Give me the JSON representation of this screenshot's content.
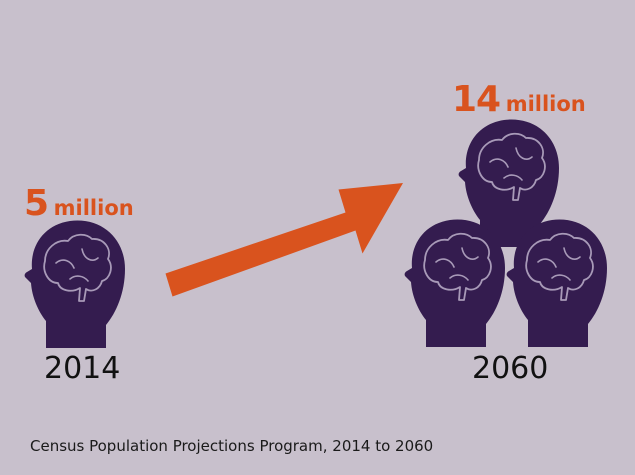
{
  "colors": {
    "background": "#c8c0cc",
    "accent": "#d9531e",
    "head": "#341c4f",
    "brain_outline": "#a89ab8",
    "year_text": "#111111"
  },
  "left": {
    "value_number": "5",
    "value_unit": "million",
    "year": "2014",
    "icon": "head-brain-icon"
  },
  "right": {
    "value_number": "14",
    "value_unit": "million",
    "year": "2060",
    "icon": "head-brain-icon"
  },
  "arrow_icon": "arrow-up-right-icon",
  "source": "Census Population Projections Program, 2014 to 2060"
}
